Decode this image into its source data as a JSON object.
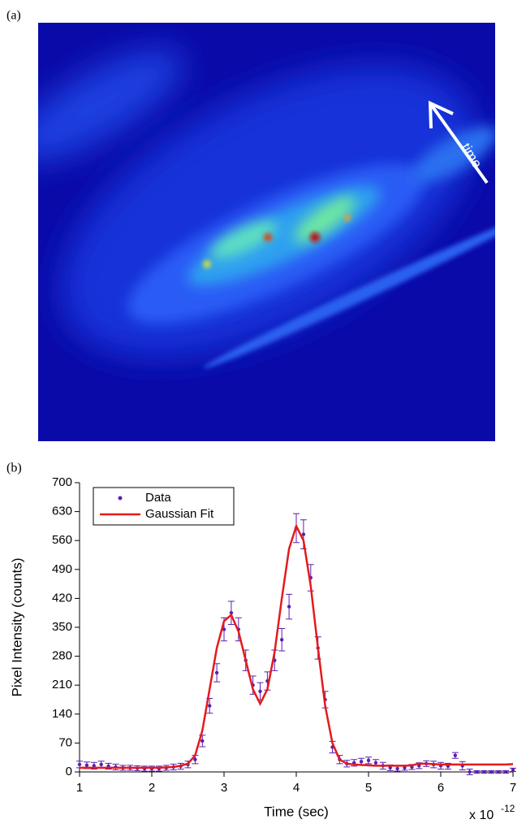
{
  "figure": {
    "panel_labels": [
      "(a)",
      "(b)"
    ],
    "image_annotation": "time"
  },
  "chart_data": {
    "type": "scatter",
    "x_label": "Time (sec)",
    "y_label": "Pixel Intensity (counts)",
    "x_exponent_base": "x 10",
    "x_exponent": "-12",
    "x": [
      1.0,
      1.1,
      1.2,
      1.3,
      1.4,
      1.5,
      1.6,
      1.7,
      1.8,
      1.9,
      2.0,
      2.1,
      2.2,
      2.3,
      2.4,
      2.5,
      2.6,
      2.7,
      2.8,
      2.9,
      3.0,
      3.1,
      3.2,
      3.3,
      3.4,
      3.5,
      3.6,
      3.7,
      3.8,
      3.9,
      4.0,
      4.1,
      4.2,
      4.3,
      4.4,
      4.5,
      4.6,
      4.7,
      4.8,
      4.9,
      5.0,
      5.1,
      5.2,
      5.3,
      5.4,
      5.5,
      5.6,
      5.7,
      5.8,
      5.9,
      6.0,
      6.1,
      6.2,
      6.3,
      6.4,
      6.5,
      6.6,
      6.7,
      6.8,
      6.9,
      7.0
    ],
    "series": [
      {
        "name": "Data",
        "type": "scatter",
        "color": "#5b1fb0",
        "values": [
          18,
          16,
          15,
          18,
          14,
          12,
          10,
          10,
          9,
          8,
          8,
          8,
          10,
          12,
          14,
          18,
          30,
          75,
          160,
          240,
          345,
          385,
          345,
          270,
          210,
          195,
          220,
          270,
          320,
          400,
          590,
          575,
          470,
          300,
          175,
          60,
          30,
          20,
          22,
          25,
          28,
          22,
          15,
          10,
          8,
          10,
          12,
          15,
          20,
          18,
          15,
          14,
          40,
          15,
          0,
          0,
          0,
          0,
          0,
          0,
          5
        ],
        "errors": [
          8,
          8,
          8,
          8,
          7,
          7,
          6,
          6,
          6,
          6,
          6,
          6,
          6,
          7,
          7,
          8,
          10,
          14,
          18,
          22,
          28,
          28,
          28,
          25,
          22,
          21,
          22,
          25,
          27,
          30,
          35,
          35,
          32,
          27,
          20,
          14,
          10,
          8,
          8,
          8,
          8,
          8,
          8,
          7,
          6,
          6,
          6,
          7,
          7,
          8,
          8,
          7,
          7,
          10,
          7,
          3,
          3,
          3,
          3,
          3,
          4
        ]
      },
      {
        "name": "Gaussian Fit",
        "type": "line",
        "color": "#e41a1c",
        "values": [
          10,
          10,
          10,
          10,
          10,
          10,
          10,
          10,
          10,
          10,
          10,
          10,
          11,
          12,
          15,
          20,
          40,
          100,
          200,
          300,
          365,
          380,
          340,
          270,
          200,
          165,
          200,
          290,
          420,
          540,
          595,
          560,
          450,
          300,
          160,
          70,
          30,
          20,
          18,
          17,
          16,
          15,
          15,
          15,
          15,
          15,
          16,
          20,
          20,
          19,
          18,
          18,
          18,
          18,
          18,
          18,
          18,
          18,
          18,
          18,
          19
        ]
      }
    ],
    "xlim": [
      1,
      7
    ],
    "xticks": [
      1,
      2,
      3,
      4,
      5,
      6,
      7
    ],
    "ylim": [
      0,
      700
    ],
    "yticks": [
      0,
      70,
      140,
      210,
      280,
      350,
      420,
      490,
      560,
      630,
      700
    ],
    "legend": "upper left"
  }
}
